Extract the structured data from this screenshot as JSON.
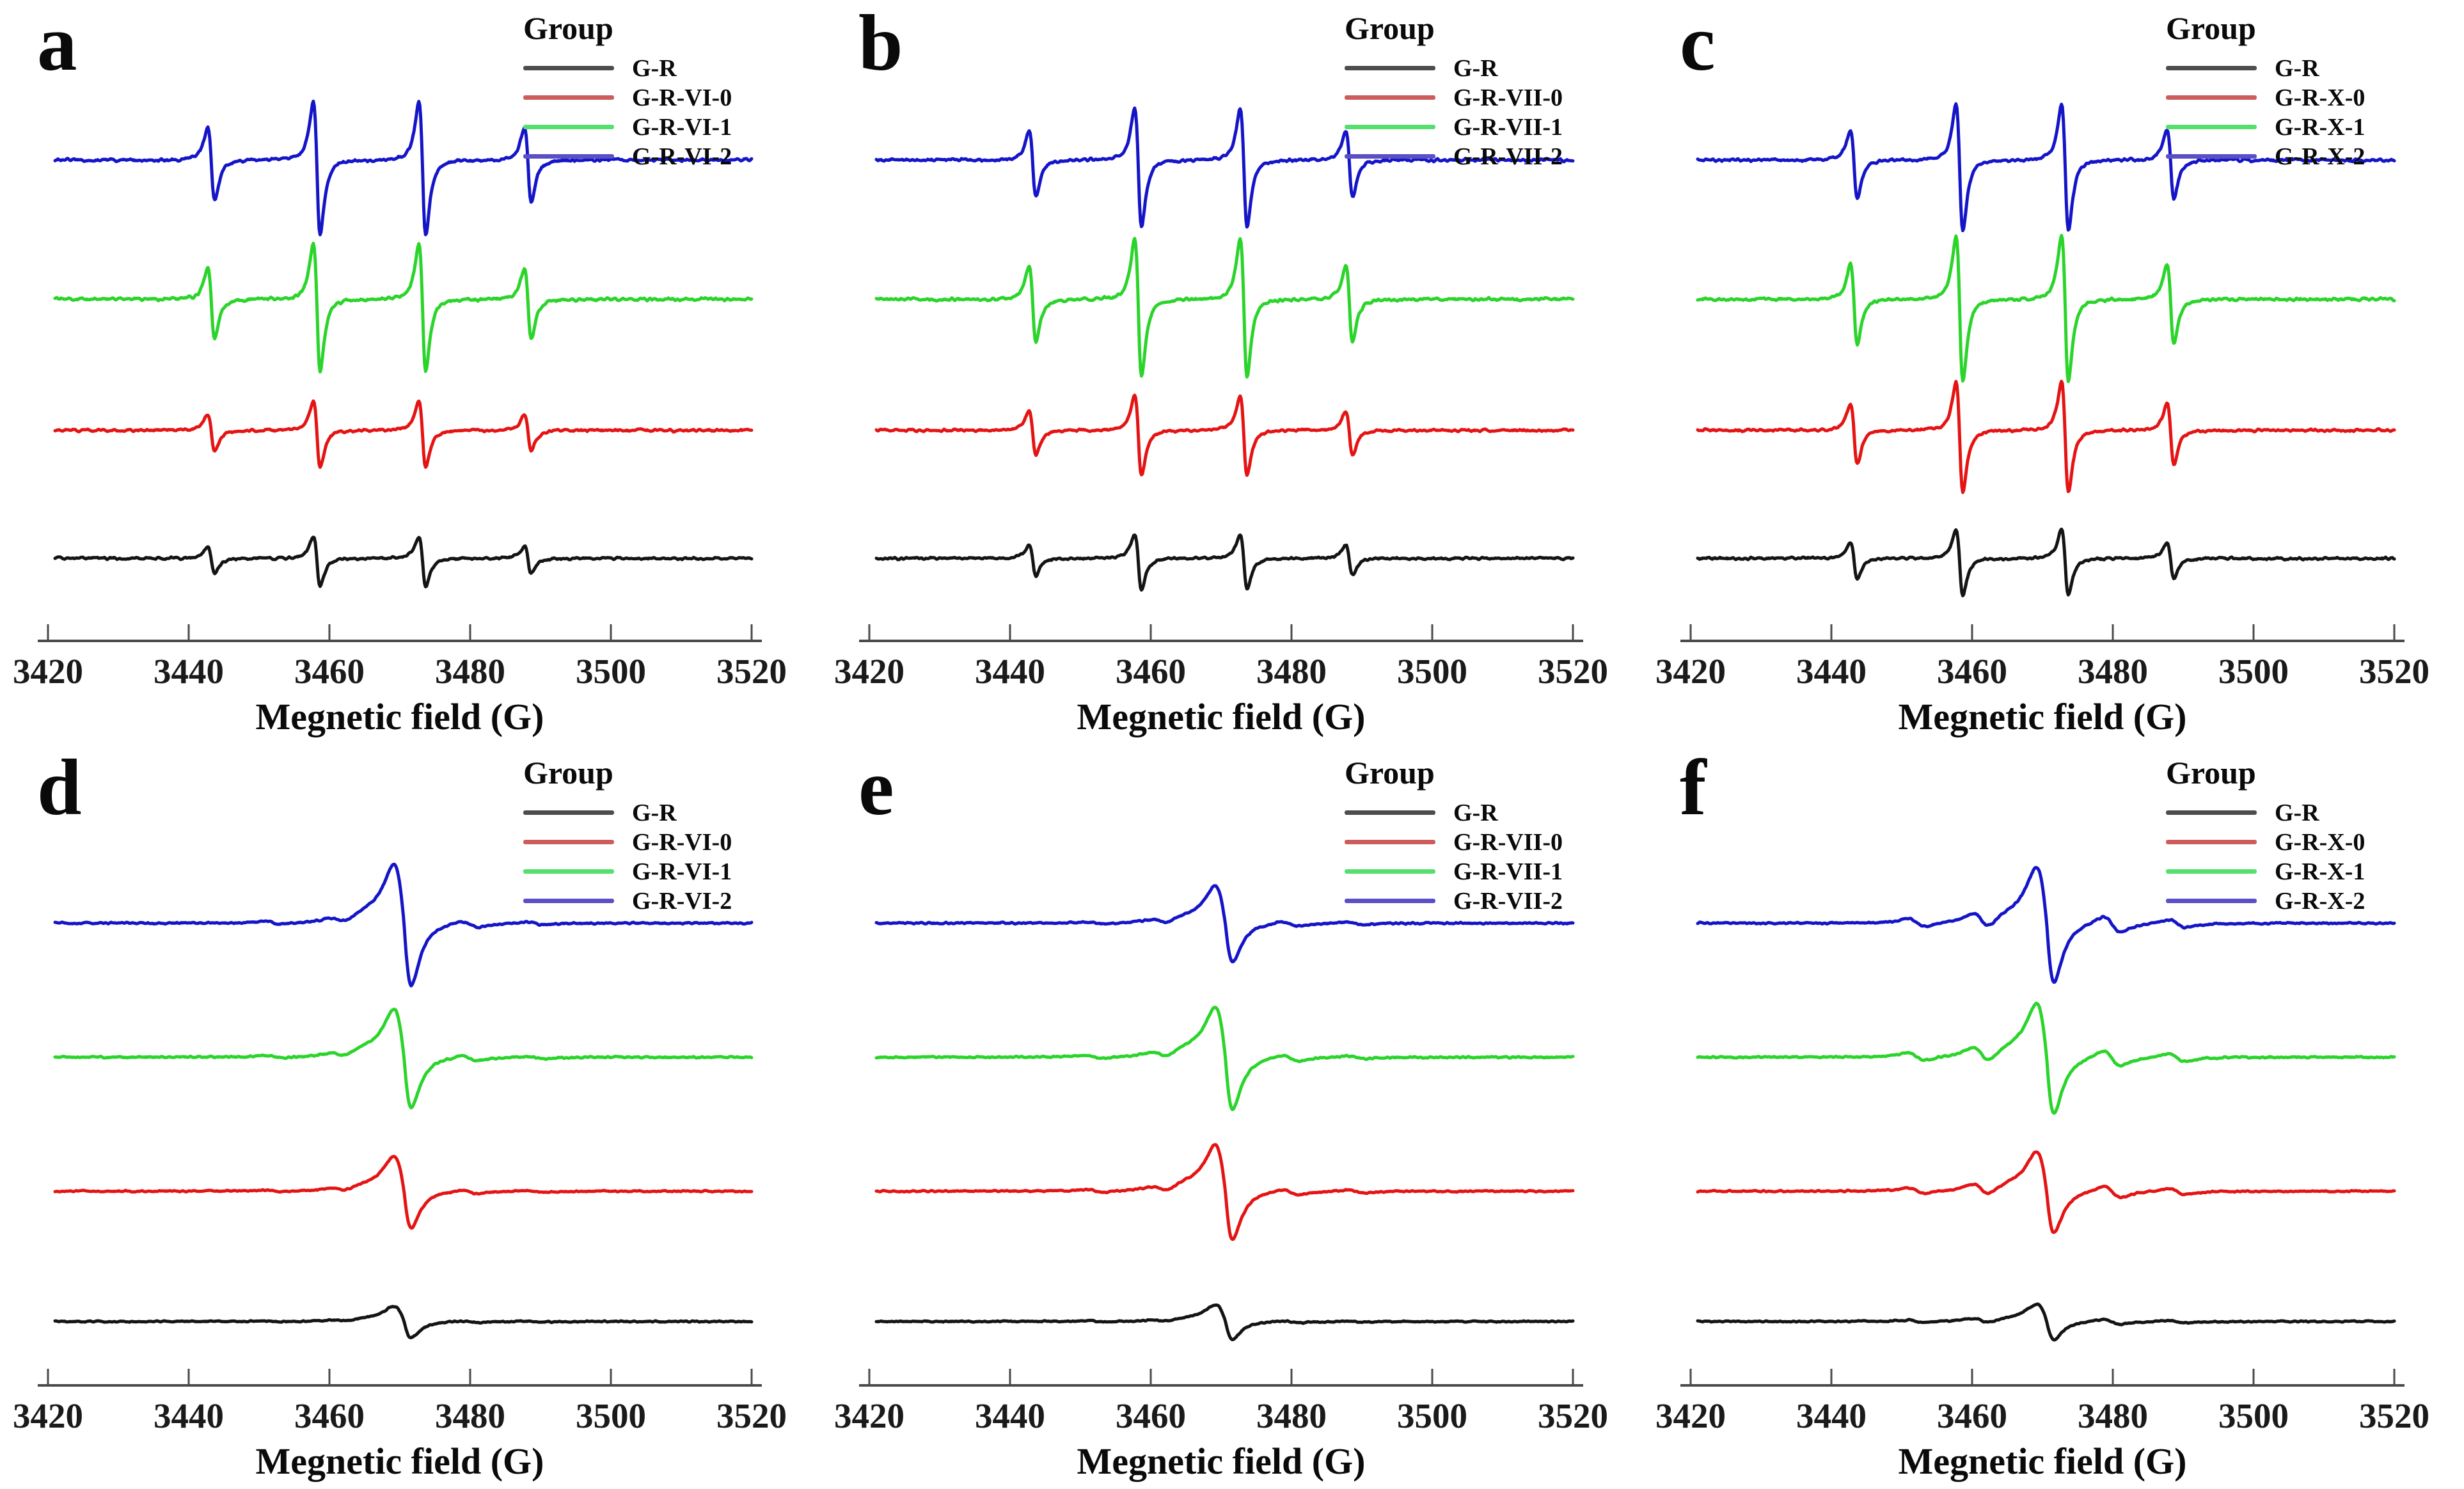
{
  "figure": {
    "background": "#ffffff",
    "axis_color": "#4a4a4a",
    "text_color": "#0a0a0a"
  },
  "chart_data": [
    {
      "panel": "a",
      "type": "line",
      "kind": "quartet",
      "xlabel": "Megnetic field (G)",
      "x_range": [
        3420,
        3520
      ],
      "x_ticks": [
        3420,
        3440,
        3460,
        3480,
        3500,
        3520
      ],
      "legend_title": "Group",
      "peaks": {
        "centers": [
          3443.2,
          3458.2,
          3473.2,
          3488.2
        ],
        "rel_amps": [
          0.55,
          1,
          1,
          0.55
        ],
        "width_g": 0.85,
        "down_scale": 1.28
      },
      "series": [
        {
          "label": "G-R",
          "color": "#141414",
          "swatch": "#4d4d4d",
          "baseline_frac": 0.75,
          "amplitude": 34,
          "noise": 2.4
        },
        {
          "label": "G-R-VI-0",
          "color": "#e51414",
          "swatch": "#cd5c5c",
          "baseline_frac": 0.578,
          "amplitude": 46,
          "noise": 2.6
        },
        {
          "label": "G-R-VI-1",
          "color": "#2bd42b",
          "swatch": "#55e06e",
          "baseline_frac": 0.402,
          "amplitude": 88,
          "noise": 3.2
        },
        {
          "label": "G-R-VI-2",
          "color": "#1515c8",
          "swatch": "#5a4fc4",
          "baseline_frac": 0.215,
          "amplitude": 92,
          "noise": 3.0
        }
      ]
    },
    {
      "panel": "b",
      "type": "line",
      "kind": "quartet",
      "xlabel": "Megnetic field (G)",
      "x_range": [
        3420,
        3520
      ],
      "x_ticks": [
        3420,
        3440,
        3460,
        3480,
        3500,
        3520
      ],
      "legend_title": "Group",
      "peaks": {
        "centers": [
          3443.2,
          3458.2,
          3473.2,
          3488.2
        ],
        "rel_amps": [
          0.55,
          1,
          1,
          0.55
        ],
        "width_g": 0.85,
        "down_scale": 1.28
      },
      "series": [
        {
          "label": "G-R",
          "color": "#141414",
          "swatch": "#4d4d4d",
          "baseline_frac": 0.75,
          "amplitude": 38,
          "noise": 2.4
        },
        {
          "label": "G-R-VII-0",
          "color": "#e51414",
          "swatch": "#cd5c5c",
          "baseline_frac": 0.578,
          "amplitude": 55,
          "noise": 2.6
        },
        {
          "label": "G-R-VII-1",
          "color": "#2bd42b",
          "swatch": "#55e06e",
          "baseline_frac": 0.402,
          "amplitude": 95,
          "noise": 3.2
        },
        {
          "label": "G-R-VII-2",
          "color": "#1515c8",
          "swatch": "#5a4fc4",
          "baseline_frac": 0.215,
          "amplitude": 82,
          "noise": 3.0
        }
      ]
    },
    {
      "panel": "c",
      "type": "line",
      "kind": "quartet",
      "xlabel": "Megnetic field (G)",
      "x_range": [
        3420,
        3520
      ],
      "x_ticks": [
        3420,
        3440,
        3460,
        3480,
        3500,
        3520
      ],
      "legend_title": "Group",
      "peaks": {
        "centers": [
          3443.2,
          3458.2,
          3473.2,
          3488.2
        ],
        "rel_amps": [
          0.55,
          1,
          1,
          0.55
        ],
        "width_g": 0.85,
        "down_scale": 1.28
      },
      "series": [
        {
          "label": "G-R",
          "color": "#141414",
          "swatch": "#4d4d4d",
          "baseline_frac": 0.75,
          "amplitude": 45,
          "noise": 2.5
        },
        {
          "label": "G-R-X-0",
          "color": "#e51414",
          "swatch": "#cd5c5c",
          "baseline_frac": 0.578,
          "amplitude": 76,
          "noise": 2.7
        },
        {
          "label": "G-R-X-1",
          "color": "#2bd42b",
          "swatch": "#55e06e",
          "baseline_frac": 0.402,
          "amplitude": 100,
          "noise": 3.2
        },
        {
          "label": "G-R-X-2",
          "color": "#1515c8",
          "swatch": "#5a4fc4",
          "baseline_frac": 0.215,
          "amplitude": 86,
          "noise": 3.0
        }
      ]
    },
    {
      "panel": "d",
      "type": "line",
      "kind": "singlet",
      "xlabel": "Megnetic field (G)",
      "x_range": [
        3420,
        3520
      ],
      "x_ticks": [
        3420,
        3440,
        3460,
        3480,
        3500,
        3520
      ],
      "legend_title": "Group",
      "peaks": {
        "center": 3470.6,
        "width_left": 2.5,
        "width_right": 1.8,
        "down_scale": 1.05,
        "shoulder": {
          "center": 3464.8,
          "sigma": 2.2,
          "amp": 0.09
        },
        "wiggle_amp": 0.05,
        "wiggle_offsets": [
          9.3,
          18.5
        ],
        "wiggle_width": 2.1
      },
      "series": [
        {
          "label": "G-R",
          "color": "#141414",
          "swatch": "#4d4d4d",
          "baseline_frac": 0.775,
          "amplitude": 24,
          "noise": 1.4
        },
        {
          "label": "G-R-VI-0",
          "color": "#e51414",
          "swatch": "#cd5c5c",
          "baseline_frac": 0.6,
          "amplitude": 55,
          "noise": 1.5
        },
        {
          "label": "G-R-VI-1",
          "color": "#2bd42b",
          "swatch": "#55e06e",
          "baseline_frac": 0.42,
          "amplitude": 75,
          "noise": 1.7
        },
        {
          "label": "G-R-VI-2",
          "color": "#1515c8",
          "swatch": "#5a4fc4",
          "baseline_frac": 0.24,
          "amplitude": 92,
          "noise": 1.7
        }
      ]
    },
    {
      "panel": "e",
      "type": "line",
      "kind": "singlet",
      "xlabel": "Megnetic field (G)",
      "x_range": [
        3420,
        3520
      ],
      "x_ticks": [
        3420,
        3440,
        3460,
        3480,
        3500,
        3520
      ],
      "legend_title": "Group",
      "peaks": {
        "center": 3470.6,
        "width_left": 2.5,
        "width_right": 1.8,
        "down_scale": 1.05,
        "shoulder": {
          "center": 3464.8,
          "sigma": 2.2,
          "amp": 0.09
        },
        "wiggle_amp": 0.06,
        "wiggle_offsets": [
          9.3,
          18.5
        ],
        "wiggle_width": 2.1
      },
      "series": [
        {
          "label": "G-R",
          "color": "#141414",
          "swatch": "#4d4d4d",
          "baseline_frac": 0.775,
          "amplitude": 26,
          "noise": 1.4
        },
        {
          "label": "G-R-VII-0",
          "color": "#e51414",
          "swatch": "#cd5c5c",
          "baseline_frac": 0.6,
          "amplitude": 72,
          "noise": 1.5
        },
        {
          "label": "G-R-VII-1",
          "color": "#2bd42b",
          "swatch": "#55e06e",
          "baseline_frac": 0.42,
          "amplitude": 78,
          "noise": 1.7
        },
        {
          "label": "G-R-VII-2",
          "color": "#1515c8",
          "swatch": "#5a4fc4",
          "baseline_frac": 0.24,
          "amplitude": 58,
          "noise": 1.7
        }
      ]
    },
    {
      "panel": "f",
      "type": "line",
      "kind": "singlet",
      "xlabel": "Megnetic field (G)",
      "x_range": [
        3420,
        3520
      ],
      "x_ticks": [
        3420,
        3440,
        3460,
        3480,
        3500,
        3520
      ],
      "legend_title": "Group",
      "peaks": {
        "center": 3470.6,
        "width_left": 2.5,
        "width_right": 1.8,
        "down_scale": 1.05,
        "shoulder": {
          "center": 3464.8,
          "sigma": 2.2,
          "amp": 0.09
        },
        "wiggle_amp": 0.14,
        "wiggle_offsets": [
          9.3,
          18.5
        ],
        "wiggle_width": 2.1
      },
      "series": [
        {
          "label": "G-R",
          "color": "#141414",
          "swatch": "#4d4d4d",
          "baseline_frac": 0.775,
          "amplitude": 27,
          "noise": 1.4
        },
        {
          "label": "G-R-X-0",
          "color": "#e51414",
          "swatch": "#cd5c5c",
          "baseline_frac": 0.6,
          "amplitude": 62,
          "noise": 1.5
        },
        {
          "label": "G-R-X-1",
          "color": "#2bd42b",
          "swatch": "#55e06e",
          "baseline_frac": 0.42,
          "amplitude": 84,
          "noise": 1.7
        },
        {
          "label": "G-R-X-2",
          "color": "#1515c8",
          "swatch": "#5a4fc4",
          "baseline_frac": 0.24,
          "amplitude": 88,
          "noise": 1.7
        }
      ]
    }
  ]
}
